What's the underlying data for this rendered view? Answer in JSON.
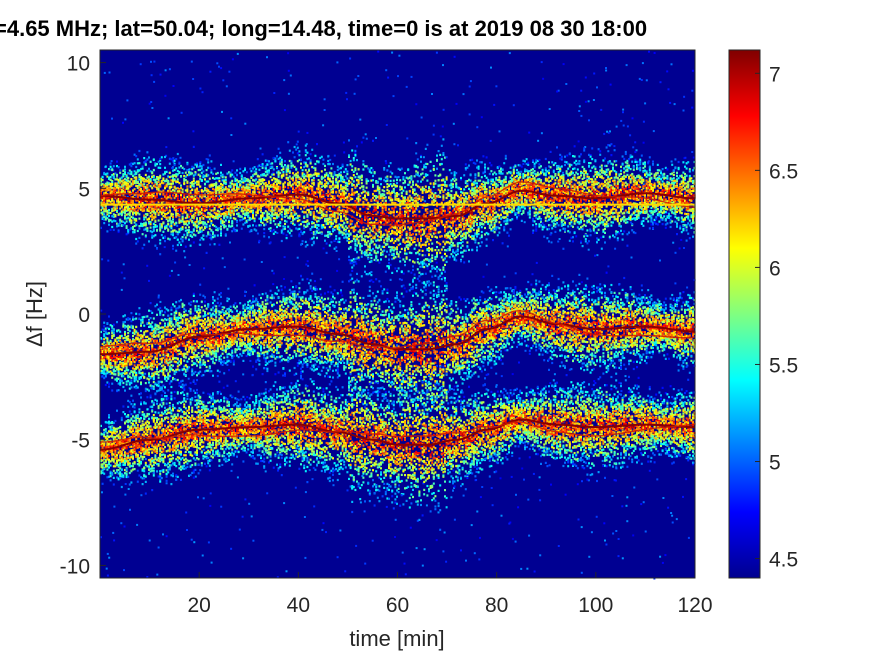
{
  "chart_data": {
    "type": "heatmap",
    "title": "=4.65 MHz;  lat=50.04; long=14.48, time=0 is at 2019 08 30 18:00",
    "xlabel": "time [min]",
    "ylabel": "Δf [Hz]",
    "xlim": [
      0,
      120
    ],
    "ylim": [
      -10.5,
      10.5
    ],
    "xticks": [
      20,
      40,
      60,
      80,
      100,
      120
    ],
    "yticks": [
      10,
      5,
      0,
      -5,
      -10
    ],
    "colorbar": {
      "range": [
        4.4,
        7.12
      ],
      "ticks": [
        4.5,
        5,
        5.5,
        6,
        6.5,
        7
      ],
      "colormap": "jet"
    },
    "background_value": 4.45,
    "constant_line": {
      "y": 4.35,
      "value": 6.2
    },
    "traces": [
      {
        "name": "",
        "t": [
          0,
          10,
          20,
          30,
          40,
          48,
          55,
          60,
          66,
          72,
          78,
          85,
          92,
          100,
          110,
          120
        ],
        "df": [
          4.7,
          4.55,
          4.4,
          4.6,
          4.75,
          4.4,
          3.9,
          3.8,
          3.8,
          3.9,
          4.4,
          4.9,
          4.7,
          4.6,
          4.8,
          4.6
        ]
      },
      {
        "name": "",
        "t": [
          0,
          10,
          20,
          30,
          40,
          48,
          55,
          60,
          66,
          72,
          78,
          85,
          92,
          100,
          110,
          120
        ],
        "df": [
          -1.6,
          -1.5,
          -0.9,
          -0.6,
          -0.5,
          -0.8,
          -1.2,
          -1.4,
          -1.4,
          -1.2,
          -0.6,
          -0.1,
          -0.4,
          -0.6,
          -0.5,
          -0.7
        ]
      },
      {
        "name": "",
        "t": [
          0,
          10,
          20,
          30,
          40,
          48,
          55,
          60,
          66,
          72,
          78,
          85,
          92,
          100,
          110,
          120
        ],
        "df": [
          -5.4,
          -5.0,
          -4.6,
          -4.5,
          -4.4,
          -4.7,
          -5.0,
          -5.2,
          -5.2,
          -5.0,
          -4.6,
          -4.2,
          -4.4,
          -4.5,
          -4.4,
          -4.5
        ]
      }
    ]
  }
}
